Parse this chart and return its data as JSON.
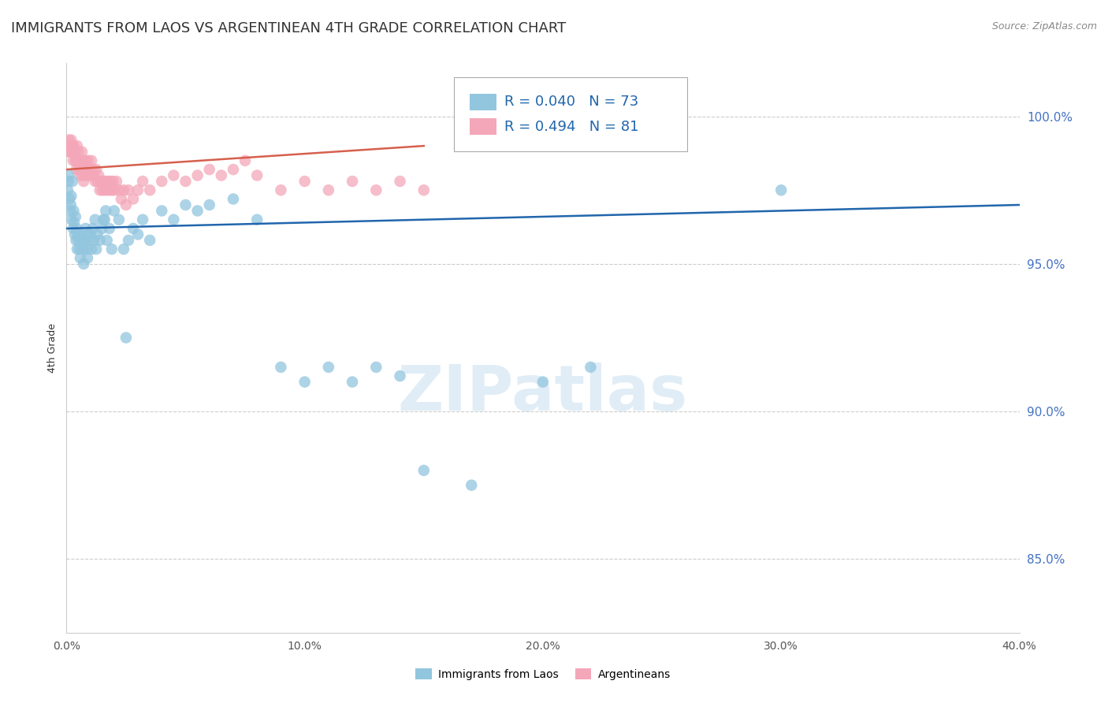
{
  "title": "IMMIGRANTS FROM LAOS VS ARGENTINEAN 4TH GRADE CORRELATION CHART",
  "source": "Source: ZipAtlas.com",
  "ylabel": "4th Grade",
  "yticks": [
    85.0,
    90.0,
    95.0,
    100.0
  ],
  "ytick_labels": [
    "85.0%",
    "90.0%",
    "95.0%",
    "100.0%"
  ],
  "xticks": [
    0.0,
    10.0,
    20.0,
    30.0,
    40.0
  ],
  "xtick_labels": [
    "0.0%",
    "10.0%",
    "20.0%",
    "30.0%",
    "40.0%"
  ],
  "xlim": [
    0.0,
    40.0
  ],
  "ylim": [
    82.5,
    101.8
  ],
  "blue_R": 0.04,
  "blue_N": 73,
  "pink_R": 0.494,
  "pink_N": 81,
  "blue_color": "#92c5de",
  "pink_color": "#f4a7b9",
  "blue_line_color": "#2166ac",
  "pink_line_color": "#d6604d",
  "legend_color": "#2166ac",
  "blue_scatter_x": [
    0.05,
    0.08,
    0.1,
    0.12,
    0.15,
    0.18,
    0.2,
    0.22,
    0.25,
    0.28,
    0.3,
    0.32,
    0.35,
    0.38,
    0.4,
    0.42,
    0.45,
    0.48,
    0.5,
    0.55,
    0.58,
    0.6,
    0.65,
    0.7,
    0.72,
    0.75,
    0.8,
    0.85,
    0.88,
    0.9,
    0.95,
    1.0,
    1.05,
    1.1,
    1.15,
    1.2,
    1.25,
    1.3,
    1.4,
    1.5,
    1.6,
    1.7,
    1.8,
    1.9,
    2.0,
    2.2,
    2.4,
    2.6,
    2.8,
    3.0,
    3.2,
    3.5,
    4.0,
    4.5,
    5.0,
    5.5,
    6.0,
    7.0,
    8.0,
    9.0,
    10.0,
    11.0,
    12.0,
    13.0,
    14.0,
    15.0,
    17.0,
    20.0,
    22.0,
    30.0,
    2.5,
    1.55,
    1.65
  ],
  "blue_scatter_y": [
    97.5,
    97.8,
    98.0,
    97.2,
    96.8,
    97.0,
    97.3,
    96.5,
    97.8,
    96.2,
    96.8,
    96.4,
    96.0,
    96.6,
    95.8,
    96.2,
    95.5,
    96.0,
    95.8,
    95.5,
    95.2,
    96.0,
    95.8,
    95.5,
    95.0,
    95.8,
    96.2,
    95.5,
    95.2,
    96.0,
    95.8,
    96.0,
    95.5,
    96.2,
    95.8,
    96.5,
    95.5,
    96.0,
    95.8,
    96.2,
    96.5,
    95.8,
    96.2,
    95.5,
    96.8,
    96.5,
    95.5,
    95.8,
    96.2,
    96.0,
    96.5,
    95.8,
    96.8,
    96.5,
    97.0,
    96.8,
    97.0,
    97.2,
    96.5,
    91.5,
    91.0,
    91.5,
    91.0,
    91.5,
    91.2,
    88.0,
    87.5,
    91.0,
    91.5,
    97.5,
    92.5,
    96.5,
    96.8
  ],
  "pink_scatter_x": [
    0.05,
    0.08,
    0.1,
    0.12,
    0.15,
    0.18,
    0.2,
    0.22,
    0.25,
    0.28,
    0.3,
    0.35,
    0.4,
    0.45,
    0.5,
    0.55,
    0.6,
    0.65,
    0.7,
    0.75,
    0.8,
    0.85,
    0.9,
    0.95,
    1.0,
    1.05,
    1.1,
    1.15,
    1.2,
    1.25,
    1.3,
    1.35,
    1.4,
    1.45,
    1.5,
    1.55,
    1.6,
    1.65,
    1.7,
    1.75,
    1.8,
    1.85,
    1.9,
    1.95,
    2.0,
    2.1,
    2.2,
    2.3,
    2.4,
    2.5,
    2.6,
    2.8,
    3.0,
    3.2,
    3.5,
    4.0,
    4.5,
    5.0,
    5.5,
    6.0,
    6.5,
    7.0,
    7.5,
    8.0,
    9.0,
    10.0,
    11.0,
    12.0,
    13.0,
    14.0,
    15.0,
    0.38,
    0.42,
    0.48,
    0.52,
    0.58,
    0.62,
    0.68,
    0.72,
    0.78
  ],
  "pink_scatter_y": [
    98.8,
    99.0,
    99.2,
    99.0,
    98.8,
    99.0,
    99.2,
    98.8,
    99.0,
    98.5,
    99.0,
    98.8,
    98.5,
    99.0,
    98.8,
    98.5,
    98.2,
    98.8,
    98.5,
    98.2,
    98.5,
    98.0,
    98.5,
    98.2,
    98.0,
    98.5,
    98.2,
    98.0,
    97.8,
    98.2,
    97.8,
    98.0,
    97.5,
    97.8,
    97.5,
    97.8,
    97.5,
    97.8,
    97.5,
    97.8,
    97.5,
    97.8,
    97.5,
    97.8,
    97.5,
    97.8,
    97.5,
    97.2,
    97.5,
    97.0,
    97.5,
    97.2,
    97.5,
    97.8,
    97.5,
    97.8,
    98.0,
    97.8,
    98.0,
    98.2,
    98.0,
    98.2,
    98.5,
    98.0,
    97.5,
    97.8,
    97.5,
    97.8,
    97.5,
    97.8,
    97.5,
    98.5,
    98.2,
    98.5,
    98.2,
    98.0,
    98.2,
    98.0,
    97.8,
    98.2
  ],
  "blue_trend_x": [
    0.0,
    40.0
  ],
  "blue_trend_y": [
    96.2,
    97.0
  ],
  "pink_trend_x": [
    0.0,
    15.0
  ],
  "pink_trend_y": [
    98.2,
    99.0
  ],
  "watermark": "ZIPatlas",
  "background_color": "#ffffff",
  "grid_color": "#cccccc",
  "tick_color": "#4472c4",
  "title_fontsize": 13,
  "axis_label_fontsize": 9,
  "legend_fontsize": 13
}
